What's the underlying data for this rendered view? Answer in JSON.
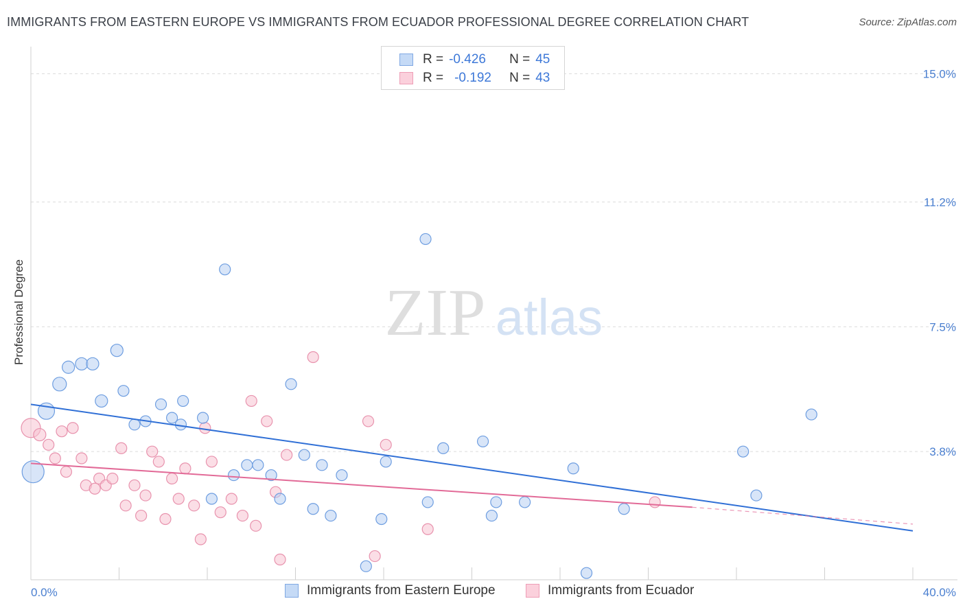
{
  "title": "IMMIGRANTS FROM EASTERN EUROPE VS IMMIGRANTS FROM ECUADOR PROFESSIONAL DEGREE CORRELATION CHART",
  "source": "Source: ZipAtlas.com",
  "watermark": {
    "zip": "ZIP",
    "atlas": "atlas"
  },
  "legend_top": [
    {
      "r_label": "R =",
      "r_value": "-0.426",
      "n_label": "N =",
      "n_value": "45"
    },
    {
      "r_label": "R =",
      "r_value": "-0.192",
      "n_label": "N =",
      "n_value": "43"
    }
  ],
  "bottom_legend": [
    {
      "label": "Immigrants from Eastern Europe"
    },
    {
      "label": "Immigrants from Ecuador"
    }
  ],
  "colors": {
    "blue_fill": "#b8d0f2",
    "blue_stroke": "#6d9de0",
    "blue_line": "#2f6fd6",
    "pink_fill": "#f8c3d2",
    "pink_stroke": "#e892ad",
    "pink_line": "#e26a97",
    "tick_label": "#4a7fd0",
    "grid": "#dcdcdc"
  },
  "chart_data": {
    "type": "scatter",
    "title": "IMMIGRANTS FROM EASTERN EUROPE VS IMMIGRANTS FROM ECUADOR PROFESSIONAL DEGREE CORRELATION CHART",
    "xlabel": "",
    "ylabel": "Professional Degree",
    "xlim": [
      0,
      40
    ],
    "ylim": [
      0,
      15.6
    ],
    "x_tick_labels": [
      "0.0%",
      "40.0%"
    ],
    "y_ticks": [
      3.8,
      7.5,
      11.2,
      15.0
    ],
    "y_tick_labels": [
      "3.8%",
      "7.5%",
      "11.2%",
      "15.0%"
    ],
    "grid": "horizontal dashed",
    "series": [
      {
        "name": "Immigrants from Eastern Europe",
        "r": -0.426,
        "n": 45,
        "trend": {
          "x": [
            0,
            40
          ],
          "y": [
            5.2,
            1.45
          ]
        },
        "points": [
          [
            0.1,
            3.2,
            16
          ],
          [
            0.7,
            5.0,
            12
          ],
          [
            1.3,
            5.8,
            10
          ],
          [
            1.7,
            6.3,
            9
          ],
          [
            2.3,
            6.4,
            9
          ],
          [
            2.8,
            6.4,
            9
          ],
          [
            3.2,
            5.3,
            9
          ],
          [
            3.9,
            6.8,
            9
          ],
          [
            4.2,
            5.6,
            8
          ],
          [
            4.7,
            4.6,
            8
          ],
          [
            5.2,
            4.7,
            8
          ],
          [
            5.9,
            5.2,
            8
          ],
          [
            6.4,
            4.8,
            8
          ],
          [
            6.8,
            4.6,
            8
          ],
          [
            6.9,
            5.3,
            8
          ],
          [
            7.8,
            4.8,
            8
          ],
          [
            8.2,
            2.4,
            8
          ],
          [
            8.8,
            9.2,
            8
          ],
          [
            9.2,
            3.1,
            8
          ],
          [
            9.8,
            3.4,
            8
          ],
          [
            10.3,
            3.4,
            8
          ],
          [
            10.9,
            3.1,
            8
          ],
          [
            11.3,
            2.4,
            8
          ],
          [
            11.8,
            5.8,
            8
          ],
          [
            12.4,
            3.7,
            8
          ],
          [
            12.8,
            2.1,
            8
          ],
          [
            13.2,
            3.4,
            8
          ],
          [
            13.6,
            1.9,
            8
          ],
          [
            14.1,
            3.1,
            8
          ],
          [
            15.2,
            0.4,
            8
          ],
          [
            15.9,
            1.8,
            8
          ],
          [
            16.1,
            3.5,
            8
          ],
          [
            17.9,
            10.1,
            8
          ],
          [
            18.0,
            2.3,
            8
          ],
          [
            18.7,
            3.9,
            8
          ],
          [
            20.5,
            4.1,
            8
          ],
          [
            20.9,
            1.9,
            8
          ],
          [
            21.1,
            2.3,
            8
          ],
          [
            22.4,
            2.3,
            8
          ],
          [
            24.6,
            3.3,
            8
          ],
          [
            25.2,
            0.2,
            8
          ],
          [
            26.9,
            2.1,
            8
          ],
          [
            32.3,
            3.8,
            8
          ],
          [
            32.9,
            2.5,
            8
          ],
          [
            35.4,
            4.9,
            8
          ]
        ]
      },
      {
        "name": "Immigrants from Ecuador",
        "r": -0.192,
        "n": 43,
        "trend": {
          "x": [
            0,
            30
          ],
          "y": [
            3.45,
            2.15
          ]
        },
        "trend_dashed": {
          "x": [
            30,
            40
          ],
          "y": [
            2.15,
            1.65
          ]
        },
        "points": [
          [
            0.0,
            4.5,
            14
          ],
          [
            0.4,
            4.3,
            9
          ],
          [
            0.8,
            4.0,
            8
          ],
          [
            1.1,
            3.6,
            8
          ],
          [
            1.4,
            4.4,
            8
          ],
          [
            1.6,
            3.2,
            8
          ],
          [
            1.9,
            4.5,
            8
          ],
          [
            2.3,
            3.6,
            8
          ],
          [
            2.5,
            2.8,
            8
          ],
          [
            2.9,
            2.7,
            8
          ],
          [
            3.1,
            3.0,
            8
          ],
          [
            3.4,
            2.8,
            8
          ],
          [
            3.7,
            3.0,
            8
          ],
          [
            4.1,
            3.9,
            8
          ],
          [
            4.3,
            2.2,
            8
          ],
          [
            4.7,
            2.8,
            8
          ],
          [
            5.0,
            1.9,
            8
          ],
          [
            5.2,
            2.5,
            8
          ],
          [
            5.5,
            3.8,
            8
          ],
          [
            5.8,
            3.5,
            8
          ],
          [
            6.1,
            1.8,
            8
          ],
          [
            6.4,
            3.0,
            8
          ],
          [
            6.7,
            2.4,
            8
          ],
          [
            7.0,
            3.3,
            8
          ],
          [
            7.4,
            2.2,
            8
          ],
          [
            7.7,
            1.2,
            8
          ],
          [
            7.9,
            4.5,
            8
          ],
          [
            8.2,
            3.5,
            8
          ],
          [
            8.6,
            2.0,
            8
          ],
          [
            9.1,
            2.4,
            8
          ],
          [
            9.6,
            1.9,
            8
          ],
          [
            10.0,
            5.3,
            8
          ],
          [
            10.2,
            1.6,
            8
          ],
          [
            10.7,
            4.7,
            8
          ],
          [
            11.1,
            2.6,
            8
          ],
          [
            11.3,
            0.6,
            8
          ],
          [
            11.6,
            3.7,
            8
          ],
          [
            12.8,
            6.6,
            8
          ],
          [
            15.3,
            4.7,
            8
          ],
          [
            15.6,
            0.7,
            8
          ],
          [
            16.1,
            4.0,
            8
          ],
          [
            18.0,
            1.5,
            8
          ],
          [
            28.3,
            2.3,
            8
          ]
        ]
      }
    ]
  }
}
